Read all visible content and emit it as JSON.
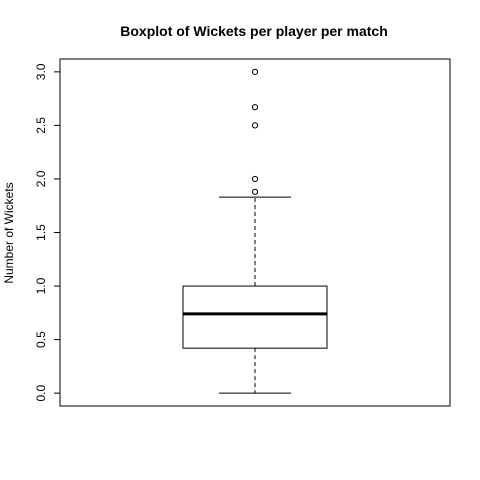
{
  "chart_data": {
    "type": "boxplot",
    "title": "Boxplot of Wickets per player per match",
    "xlabel": "",
    "ylabel": "Number of Wickets",
    "ylim": [
      -0.12,
      3.12
    ],
    "yticks": [
      0.0,
      0.5,
      1.0,
      1.5,
      2.0,
      2.5,
      3.0
    ],
    "ytick_labels": [
      "0.0",
      "0.5",
      "1.0",
      "1.5",
      "2.0",
      "2.5",
      "3.0"
    ],
    "grid": false,
    "box": {
      "whisker_low": 0.0,
      "q1": 0.42,
      "median": 0.74,
      "q3": 1.0,
      "whisker_high": 1.83,
      "outliers": [
        1.88,
        2.0,
        2.5,
        2.67,
        3.0
      ]
    }
  }
}
